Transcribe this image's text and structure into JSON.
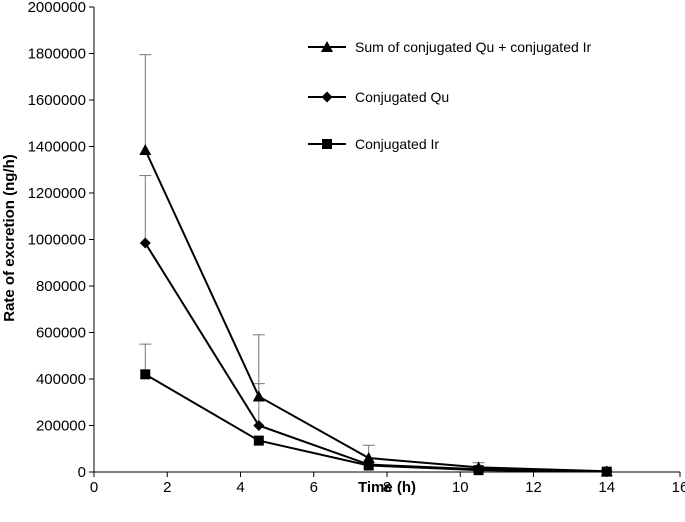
{
  "chart_data": {
    "type": "line",
    "title": "",
    "xlabel": "Time (h)",
    "ylabel": "Rate of excretion (ng/h)",
    "xlim": [
      0,
      16
    ],
    "ylim": [
      0,
      2000000
    ],
    "x_ticks": [
      "0",
      "2",
      "4",
      "6",
      "8",
      "10",
      "12",
      "14",
      "16"
    ],
    "y_ticks": [
      "0",
      "200000",
      "400000",
      "600000",
      "800000",
      "1000000",
      "1200000",
      "1400000",
      "1600000",
      "1800000",
      "2000000"
    ],
    "grid": false,
    "legend_position": "top-right",
    "series": [
      {
        "name": "Sum of conjugated Qu + conjugated Ir",
        "marker": "triangle",
        "x": [
          1.4,
          4.5,
          7.5,
          10.5,
          14
        ],
        "y": [
          1385000,
          325000,
          60000,
          20000,
          3000
        ],
        "error_upper": [
          1795000,
          590000,
          115000,
          40000,
          8000
        ]
      },
      {
        "name": "Conjugated Qu",
        "marker": "diamond",
        "x": [
          1.4,
          4.5,
          7.5,
          10.5,
          14
        ],
        "y": [
          985000,
          200000,
          32000,
          12000,
          2000
        ],
        "error_upper": [
          1275000,
          380000,
          0,
          0,
          0
        ]
      },
      {
        "name": "Conjugated Ir",
        "marker": "square",
        "x": [
          1.4,
          4.5,
          7.5,
          10.5,
          14
        ],
        "y": [
          420000,
          135000,
          28000,
          8000,
          1500
        ],
        "error_upper": [
          550000,
          0,
          0,
          0,
          0
        ]
      }
    ],
    "colors": {
      "line": "#000000",
      "error_bar": "#777777",
      "axis": "#000000"
    }
  }
}
